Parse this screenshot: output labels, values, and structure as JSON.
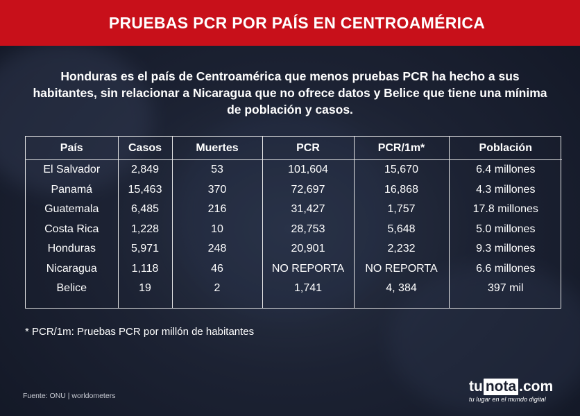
{
  "header": {
    "title": "PRUEBAS PCR POR PAÍS EN CENTROAMÉRICA"
  },
  "intro": "Honduras es el país de Centroamérica que menos pruebas PCR ha hecho a sus habitantes, sin relacionar a Nicaragua que no ofrece datos y Belice que tiene una mínima de población y casos.",
  "table": {
    "columns": [
      "País",
      "Casos",
      "Muertes",
      "PCR",
      "PCR/1m*",
      "Población"
    ],
    "rows": [
      [
        "El Salvador",
        "2,849",
        "53",
        "101,604",
        "15,670",
        "6.4 millones"
      ],
      [
        "Panamá",
        "15,463",
        "370",
        "72,697",
        "16,868",
        "4.3 millones"
      ],
      [
        "Guatemala",
        "6,485",
        "216",
        "31,427",
        "1,757",
        "17.8 millones"
      ],
      [
        "Costa Rica",
        "1,228",
        "10",
        "28,753",
        "5,648",
        "5.0 millones"
      ],
      [
        "Honduras",
        "5,971",
        "248",
        "20,901",
        "2,232",
        "9.3 millones"
      ],
      [
        "Nicaragua",
        "1,118",
        "46",
        "NO REPORTA",
        "NO REPORTA",
        "6.6 millones"
      ],
      [
        "Belice",
        "19",
        "2",
        "1,741",
        "4, 384",
        "397 mil"
      ]
    ]
  },
  "footnote": "* PCR/1m: Pruebas PCR por millón de habitantes",
  "source": "Fuente: ONU | worldometers",
  "logo": {
    "prefix": "tu",
    "boxed": "nota",
    "suffix": ".com",
    "tagline": "tu lugar en el mundo digital"
  },
  "colors": {
    "header_bg": "#c8101a",
    "background": "#1c2233",
    "text": "#ffffff"
  }
}
